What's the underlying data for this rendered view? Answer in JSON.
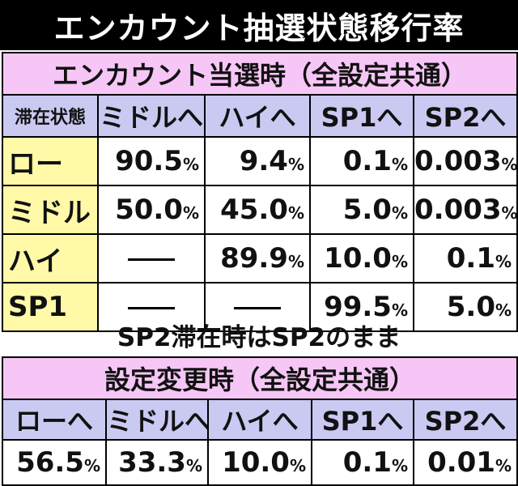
{
  "title": "エンカウント抽選状態移行率",
  "section1": {
    "heading": "エンカウント当選時（全設定共通）",
    "corner_label": "滞在状態",
    "columns": [
      "ミドルへ",
      "ハイへ",
      "SP1へ",
      "SP2へ"
    ],
    "rows": [
      {
        "label": "ロー",
        "values": [
          {
            "num": "90.5",
            "unit": "%"
          },
          {
            "num": "9.4",
            "unit": "%"
          },
          {
            "num": "0.1",
            "unit": "%"
          },
          {
            "num": "0.003",
            "unit": "%"
          }
        ]
      },
      {
        "label": "ミドル",
        "values": [
          {
            "num": "50.0",
            "unit": "%"
          },
          {
            "num": "45.0",
            "unit": "%"
          },
          {
            "num": "5.0",
            "unit": "%"
          },
          {
            "num": "0.003",
            "unit": "%"
          }
        ]
      },
      {
        "label": "ハイ",
        "values": [
          {
            "num": "",
            "unit": ""
          },
          {
            "num": "89.9",
            "unit": "%"
          },
          {
            "num": "10.0",
            "unit": "%"
          },
          {
            "num": "0.1",
            "unit": "%"
          }
        ]
      },
      {
        "label": "SP1",
        "values": [
          {
            "num": "",
            "unit": ""
          },
          {
            "num": "",
            "unit": ""
          },
          {
            "num": "99.5",
            "unit": "%"
          },
          {
            "num": "5.0",
            "unit": "%"
          }
        ]
      }
    ]
  },
  "note": "SP2滞在時はSP2のまま",
  "section2": {
    "heading": "設定変更時（全設定共通）",
    "columns": [
      "ローへ",
      "ミドルへ",
      "ハイへ",
      "SP1へ",
      "SP2へ"
    ],
    "values": [
      {
        "num": "56.5",
        "unit": "%"
      },
      {
        "num": "33.3",
        "unit": "%"
      },
      {
        "num": "10.0",
        "unit": "%"
      },
      {
        "num": "0.1",
        "unit": "%"
      },
      {
        "num": "0.01",
        "unit": "%"
      }
    ]
  }
}
